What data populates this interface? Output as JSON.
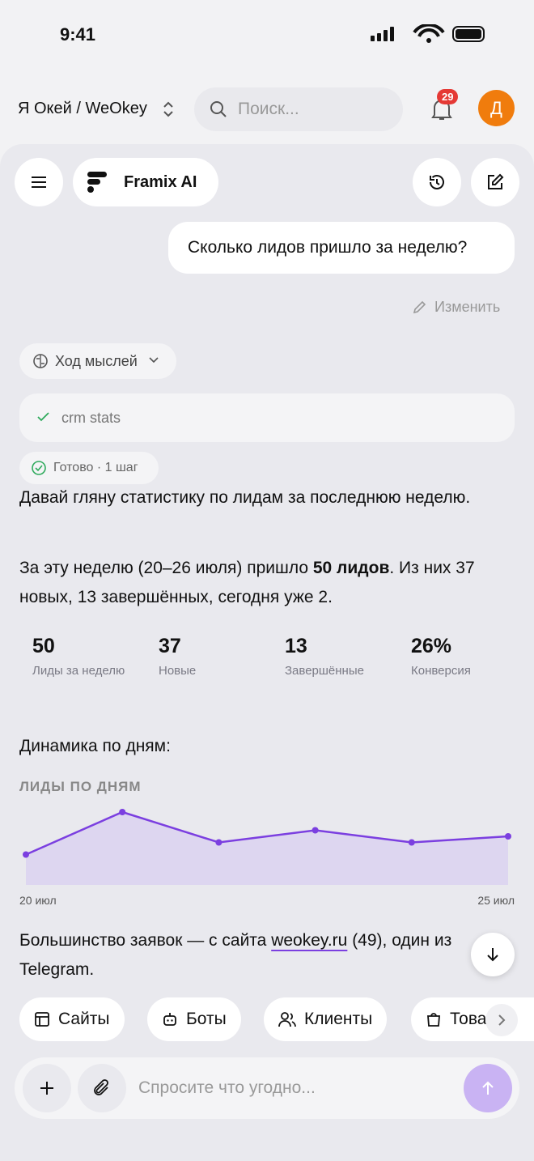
{
  "status_bar": {
    "time": "9:41"
  },
  "header": {
    "workspace": "Я Окей / WeOkey",
    "search_placeholder": "Поиск...",
    "notifications": "29",
    "avatar": "Д"
  },
  "chat": {
    "assistant_name": "Framix AI",
    "user_message": "Сколько лидов пришло за неделю?",
    "edit": "Изменить",
    "thoughts": "Ход мыслей",
    "tool": "crm stats",
    "status": "Готово · 1 шаг",
    "paragraph_1": "Давай гляну статистику по лидам за последнюю неделю.",
    "paragraph_2": {
      "before": "За эту неделю (20–26 июля) пришло ",
      "bold": "50 лидов",
      "after": ". Из них 37 новых, 13 завершённых, сегодня уже 2."
    },
    "stats": [
      {
        "value": "50",
        "label": "Лиды за неделю"
      },
      {
        "value": "37",
        "label": "Новые"
      },
      {
        "value": "13",
        "label": "Завершённые"
      },
      {
        "value": "26%",
        "label": "Конверсия"
      }
    ],
    "dynamics_heading": "Динамика по дням:",
    "paragraph_3": {
      "before": "Большинство заявок — с сайта ",
      "link": "weokey.ru",
      "after": " (49), один из Telegram."
    },
    "chips": [
      "Сайты",
      "Боты",
      "Клиенты",
      "Товары"
    ],
    "input_placeholder": "Спросите что угодно..."
  },
  "chart_data": {
    "type": "area",
    "title": "ЛИДЫ ПО ДНЯМ",
    "categories": [
      "20 июл",
      null,
      null,
      null,
      null,
      "25 июл"
    ],
    "values": [
      5,
      12,
      7,
      9,
      7,
      8
    ],
    "color": "#7b3fe0",
    "fill": "#ddd6f0",
    "ylim": [
      0,
      12
    ]
  }
}
